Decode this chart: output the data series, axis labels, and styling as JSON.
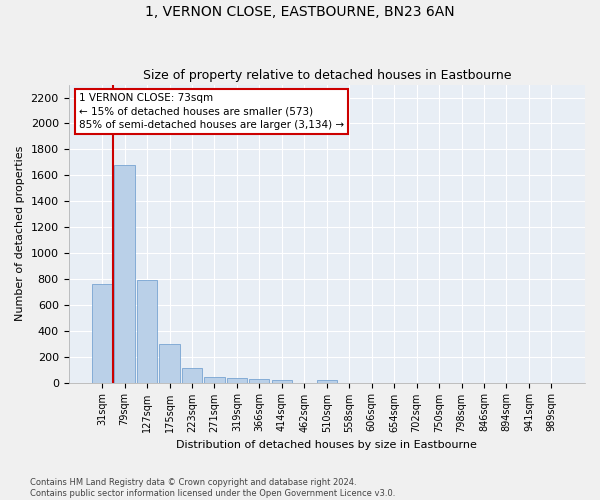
{
  "title": "1, VERNON CLOSE, EASTBOURNE, BN23 6AN",
  "subtitle": "Size of property relative to detached houses in Eastbourne",
  "xlabel": "Distribution of detached houses by size in Eastbourne",
  "ylabel": "Number of detached properties",
  "bar_labels": [
    "31sqm",
    "79sqm",
    "127sqm",
    "175sqm",
    "223sqm",
    "271sqm",
    "319sqm",
    "366sqm",
    "414sqm",
    "462sqm",
    "510sqm",
    "558sqm",
    "606sqm",
    "654sqm",
    "702sqm",
    "750sqm",
    "798sqm",
    "846sqm",
    "894sqm",
    "941sqm",
    "989sqm"
  ],
  "bar_values": [
    760,
    1680,
    795,
    300,
    110,
    43,
    32,
    25,
    22,
    0,
    22,
    0,
    0,
    0,
    0,
    0,
    0,
    0,
    0,
    0,
    0
  ],
  "bar_color": "#bad0e8",
  "bar_edgecolor": "#6699cc",
  "ylim": [
    0,
    2300
  ],
  "yticks": [
    0,
    200,
    400,
    600,
    800,
    1000,
    1200,
    1400,
    1600,
    1800,
    2000,
    2200
  ],
  "vline_x": 0.5,
  "vline_color": "#cc0000",
  "annotation_text": "1 VERNON CLOSE: 73sqm\n← 15% of detached houses are smaller (573)\n85% of semi-detached houses are larger (3,134) →",
  "annotation_box_color": "#ffffff",
  "annotation_box_edgecolor": "#cc0000",
  "footer": "Contains HM Land Registry data © Crown copyright and database right 2024.\nContains public sector information licensed under the Open Government Licence v3.0.",
  "fig_background_color": "#f0f0f0",
  "plot_background_color": "#e8eef5",
  "grid_color": "#ffffff",
  "title_fontsize": 10,
  "subtitle_fontsize": 9,
  "ylabel_fontsize": 8,
  "xlabel_fontsize": 8
}
